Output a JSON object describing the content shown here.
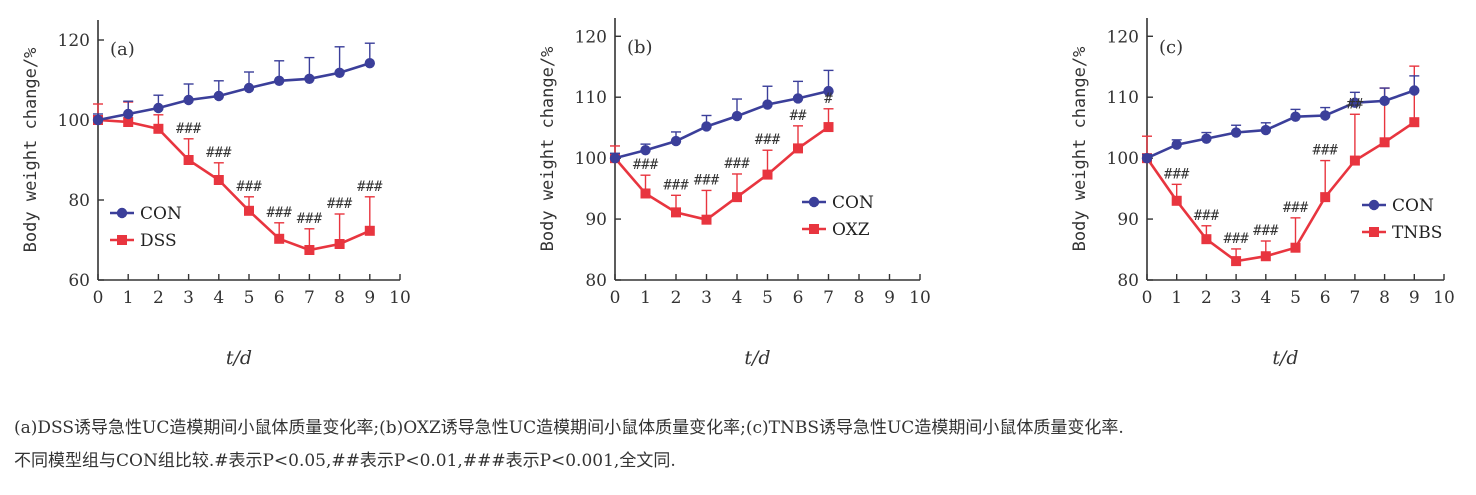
{
  "colors": {
    "con": "#3b3f9a",
    "model": "#e8353f",
    "axis": "#333333"
  },
  "chart_data": [
    {
      "type": "line",
      "panel_label": "(a)",
      "xlabel": "t/d",
      "ylabel": "Body weight change/%",
      "xlim": [
        0,
        10
      ],
      "ylim": [
        60,
        125
      ],
      "yticks": [
        60,
        80,
        100,
        120
      ],
      "xticks": [
        0,
        1,
        2,
        3,
        4,
        5,
        6,
        7,
        8,
        9,
        10
      ],
      "legend_position": "middle-left",
      "series": [
        {
          "name": "CON",
          "color": "#3b3f9a",
          "marker": "circle",
          "x": [
            0,
            1,
            2,
            3,
            4,
            5,
            6,
            7,
            8,
            9
          ],
          "y": [
            100,
            101.5,
            103,
            105,
            106,
            108,
            109.8,
            110.3,
            111.8,
            114.2
          ],
          "err": [
            1.5,
            3.2,
            3.2,
            4,
            3.8,
            4,
            5,
            5.3,
            6.5,
            5
          ]
        },
        {
          "name": "DSS",
          "color": "#e8353f",
          "marker": "square",
          "x": [
            0,
            1,
            2,
            3,
            4,
            5,
            6,
            7,
            8,
            9
          ],
          "y": [
            100,
            99.5,
            97.8,
            90,
            85,
            77.3,
            70.3,
            67.5,
            69,
            72.3
          ],
          "err": [
            4,
            5,
            3.5,
            5.3,
            4.3,
            3.5,
            4,
            5.3,
            7.5,
            8.5
          ]
        }
      ],
      "annotations": [
        {
          "x": 3,
          "text": "###"
        },
        {
          "x": 4,
          "text": "###"
        },
        {
          "x": 5,
          "text": "###"
        },
        {
          "x": 6,
          "text": "###"
        },
        {
          "x": 7,
          "text": "###"
        },
        {
          "x": 8,
          "text": "###"
        },
        {
          "x": 9,
          "text": "###"
        }
      ]
    },
    {
      "type": "line",
      "panel_label": "(b)",
      "xlabel": "t/d",
      "ylabel": "Body weight change/%",
      "xlim": [
        0,
        10
      ],
      "ylim": [
        80,
        123
      ],
      "yticks": [
        80,
        90,
        100,
        110,
        120
      ],
      "xticks": [
        0,
        1,
        2,
        3,
        4,
        5,
        6,
        7,
        8,
        9,
        10
      ],
      "legend_position": "middle-right",
      "series": [
        {
          "name": "CON",
          "color": "#3b3f9a",
          "marker": "circle",
          "x": [
            0,
            1,
            2,
            3,
            4,
            5,
            6,
            7
          ],
          "y": [
            100,
            101.3,
            102.8,
            105.2,
            106.9,
            108.8,
            109.8,
            111
          ],
          "err": [
            0.8,
            1,
            1.5,
            1.8,
            2.8,
            3,
            2.8,
            3.4
          ]
        },
        {
          "name": "OXZ",
          "color": "#e8353f",
          "marker": "square",
          "x": [
            0,
            1,
            2,
            3,
            4,
            5,
            6,
            7
          ],
          "y": [
            100,
            94.2,
            91.1,
            89.9,
            93.6,
            97.3,
            101.6,
            105.1
          ],
          "err": [
            2,
            3,
            2.8,
            4.8,
            3.8,
            4,
            3.7,
            3
          ]
        }
      ],
      "annotations": [
        {
          "x": 1,
          "text": "###"
        },
        {
          "x": 2,
          "text": "###"
        },
        {
          "x": 3,
          "text": "###"
        },
        {
          "x": 4,
          "text": "###"
        },
        {
          "x": 5,
          "text": "###"
        },
        {
          "x": 6,
          "text": "##"
        },
        {
          "x": 7,
          "text": "#"
        }
      ]
    },
    {
      "type": "line",
      "panel_label": "(c)",
      "xlabel": "t/d",
      "ylabel": "Body weight change/%",
      "xlim": [
        0,
        10
      ],
      "ylim": [
        80,
        123
      ],
      "yticks": [
        80,
        90,
        100,
        110,
        120
      ],
      "xticks": [
        0,
        1,
        2,
        3,
        4,
        5,
        6,
        7,
        8,
        9,
        10
      ],
      "legend_position": "middle-right",
      "series": [
        {
          "name": "CON",
          "color": "#3b3f9a",
          "marker": "circle",
          "x": [
            0,
            1,
            2,
            3,
            4,
            5,
            6,
            7,
            8,
            9
          ],
          "y": [
            100,
            102.2,
            103.2,
            104.2,
            104.6,
            106.8,
            107,
            109.1,
            109.4,
            111.1
          ],
          "err": [
            0.6,
            0.8,
            1,
            1.2,
            1.2,
            1.2,
            1.3,
            1.7,
            2.1,
            2.4
          ]
        },
        {
          "name": "TNBS",
          "color": "#e8353f",
          "marker": "square",
          "x": [
            0,
            1,
            2,
            3,
            4,
            5,
            6,
            7,
            8,
            9
          ],
          "y": [
            100,
            93,
            86.7,
            83.1,
            83.9,
            85.3,
            93.6,
            99.6,
            102.6,
            105.9
          ],
          "err": [
            3.6,
            2.7,
            2.2,
            2,
            2.5,
            4.9,
            6,
            7.6,
            8.9,
            9.2
          ]
        }
      ],
      "annotations": [
        {
          "x": 1,
          "text": "###"
        },
        {
          "x": 2,
          "text": "###"
        },
        {
          "x": 3,
          "text": "###"
        },
        {
          "x": 4,
          "text": "###"
        },
        {
          "x": 5,
          "text": "###"
        },
        {
          "x": 6,
          "text": "###"
        },
        {
          "x": 7,
          "text": "##"
        }
      ]
    }
  ],
  "caption": {
    "line1": "(a)DSS诱导急性UC造模期间小鼠体质量变化率;(b)OXZ诱导急性UC造模期间小鼠体质量变化率;(c)TNBS诱导急性UC造模期间小鼠体质量变化率.",
    "line2": "不同模型组与CON组比较.#表示P<0.05,##表示P<0.01,###表示P<0.001,全文同."
  }
}
